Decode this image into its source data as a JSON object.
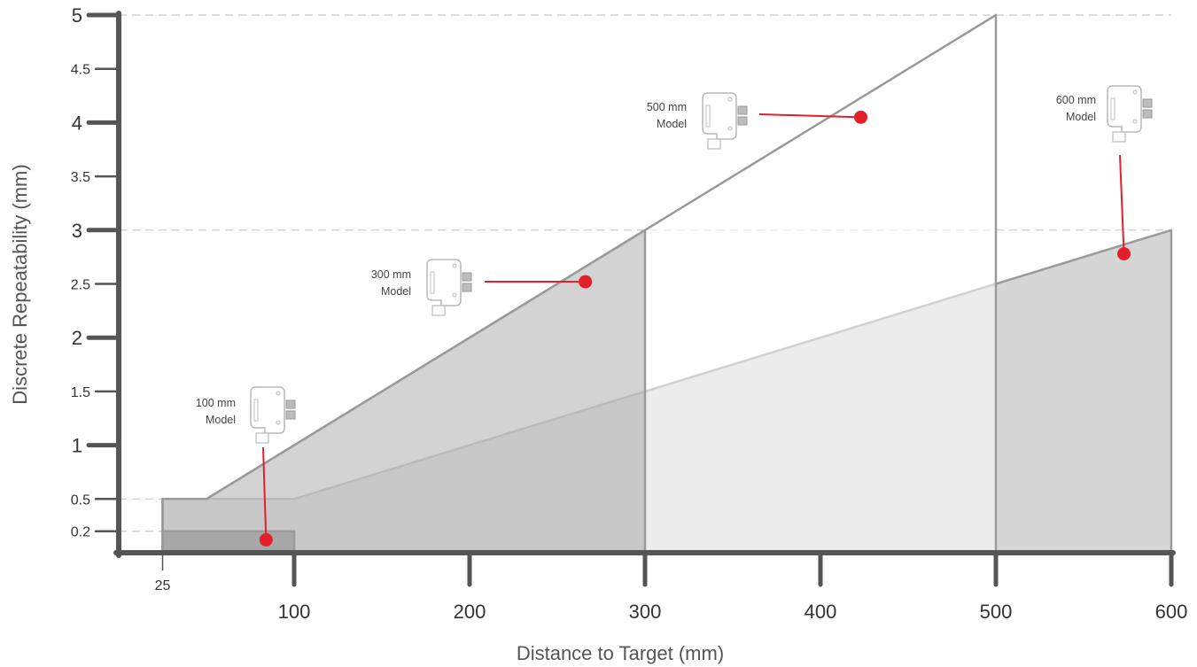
{
  "chart_data": {
    "type": "area",
    "xlabel": "Distance to Target (mm)",
    "ylabel": "Discrete Repeatability (mm)",
    "xlim": [
      0,
      600
    ],
    "ylim": [
      0,
      5
    ],
    "x_ticks": [
      {
        "value": 25,
        "label": "25",
        "minor": true
      },
      {
        "value": 100,
        "label": "100"
      },
      {
        "value": 200,
        "label": "200"
      },
      {
        "value": 300,
        "label": "300"
      },
      {
        "value": 400,
        "label": "400"
      },
      {
        "value": 500,
        "label": "500"
      },
      {
        "value": 600,
        "label": "600"
      }
    ],
    "y_ticks": [
      {
        "value": 0.2,
        "label": "0.2",
        "minor": true,
        "guide": true
      },
      {
        "value": 0.5,
        "label": "0.5",
        "minor": true,
        "guide": true
      },
      {
        "value": 1,
        "label": "1"
      },
      {
        "value": 1.5,
        "label": "1.5",
        "minor": true
      },
      {
        "value": 2,
        "label": "2"
      },
      {
        "value": 2.5,
        "label": "2.5",
        "minor": true
      },
      {
        "value": 3,
        "label": "3",
        "guide": true
      },
      {
        "value": 3.5,
        "label": "3.5",
        "minor": true
      },
      {
        "value": 4,
        "label": "4"
      },
      {
        "value": 4.5,
        "label": "4.5",
        "minor": true
      },
      {
        "value": 5,
        "label": "5",
        "guide": true
      }
    ],
    "series": [
      {
        "name": "600 mm Model",
        "fill": "#d6d6d7",
        "points": [
          [
            25,
            0
          ],
          [
            25,
            0.5
          ],
          [
            100,
            0.5
          ],
          [
            600,
            3
          ],
          [
            600,
            0
          ]
        ]
      },
      {
        "name": "500 mm Model",
        "fill": "#ffffff",
        "fill_opacity": 0.55,
        "points": [
          [
            25,
            0
          ],
          [
            25,
            0.5
          ],
          [
            50,
            0.5
          ],
          [
            500,
            5
          ],
          [
            500,
            0
          ]
        ]
      },
      {
        "name": "300 mm Model",
        "fill": "#9d9d9e",
        "fill_opacity": 0.45,
        "points": [
          [
            25,
            0
          ],
          [
            25,
            0.5
          ],
          [
            50,
            0.5
          ],
          [
            300,
            3
          ],
          [
            300,
            0
          ]
        ]
      },
      {
        "name": "100 mm Model",
        "fill": "#a3a3a4",
        "fill_opacity": 0.9,
        "points": [
          [
            25,
            0
          ],
          [
            25,
            0.2
          ],
          [
            100,
            0.2
          ],
          [
            100,
            0
          ]
        ]
      }
    ],
    "annotations": [
      {
        "label_line1": "100 mm",
        "label_line2": "Model",
        "point": [
          84,
          0.12
        ],
        "leader": "vertical"
      },
      {
        "label_line1": "300 mm",
        "label_line2": "Model",
        "point": [
          266,
          2.52
        ],
        "leader": "horizontal"
      },
      {
        "label_line1": "500 mm",
        "label_line2": "Model",
        "point": [
          423,
          4.05
        ],
        "leader": "horizontal"
      },
      {
        "label_line1": "600 mm",
        "label_line2": "Model",
        "point": [
          573,
          2.78
        ],
        "leader": "vertical"
      }
    ],
    "colors": {
      "axis": "#555555",
      "outline": "#9a9a9a",
      "guide": "#c8c8c8",
      "marker": "#e3202a"
    }
  }
}
